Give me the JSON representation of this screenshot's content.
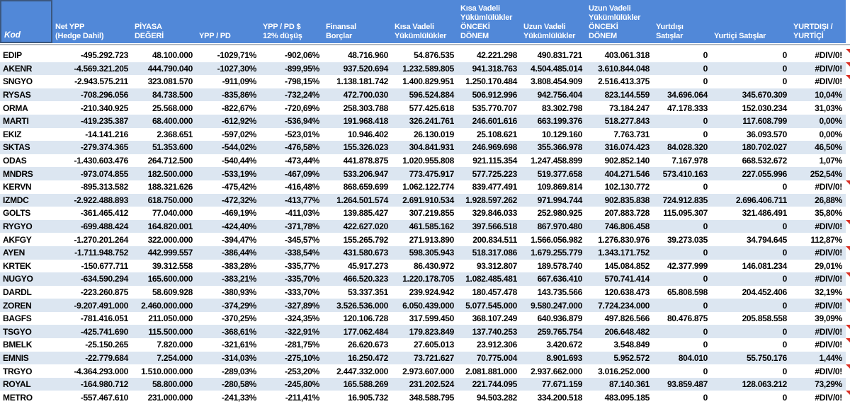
{
  "colors": {
    "header_bg": "#5188D8",
    "stripe": "#DCE6F1",
    "selection_border": "#3B577E",
    "comment_flag": "#D93025",
    "header_text": "#FFFFFF",
    "data_text": "#000000"
  },
  "header": {
    "columns": [
      {
        "id": "kod",
        "label": "Kod"
      },
      {
        "id": "net-ypp",
        "label": "Net YPP\n(Hedge Dahil)"
      },
      {
        "id": "piyasa-degeri",
        "label": "PİYASA\nDEĞERİ"
      },
      {
        "id": "ypp-pd",
        "label": "YPP / PD"
      },
      {
        "id": "ypp-pd-usd",
        "label": "YPP / PD $\n12% düşüş"
      },
      {
        "id": "finansal-borclar",
        "label": "Finansal\nBorçlar"
      },
      {
        "id": "kisa-vadeli",
        "label": "Kısa Vadeli\nYükümlülükler"
      },
      {
        "id": "kisa-vadeli-onceki",
        "label": "Kısa Vadeli\nYükümlülükler\nÖNCEKİ\nDÖNEM"
      },
      {
        "id": "uzun-vadeli",
        "label": "Uzun Vadeli\nYükümlülükler"
      },
      {
        "id": "uzun-vadeli-onceki",
        "label": "Uzun Vadeli\nYükümlülükler\nÖNCEKİ\nDÖNEM"
      },
      {
        "id": "yurtdisi-satislar",
        "label": "Yurtdışı\nSatışlar"
      },
      {
        "id": "yurtici-satislar",
        "label": "Yurtiçi Satışlar"
      },
      {
        "id": "yurtdisi-yurtici",
        "label": "YURTDIŞI /\nYURTİÇİ"
      }
    ]
  },
  "rows": [
    {
      "flagged": true,
      "cells": [
        "EDIP",
        "-495.292.723",
        "48.100.000",
        "-1029,71%",
        "-902,06%",
        "48.716.960",
        "54.876.535",
        "42.221.298",
        "490.831.721",
        "403.061.318",
        "0",
        "0",
        "#DIV/0!"
      ]
    },
    {
      "flagged": true,
      "cells": [
        "AKENR",
        "-4.569.321.205",
        "444.790.040",
        "-1027,30%",
        "-899,95%",
        "937.520.694",
        "1.232.589.805",
        "941.318.763",
        "4.504.485.014",
        "3.610.844.048",
        "0",
        "0",
        "#DIV/0!"
      ]
    },
    {
      "flagged": true,
      "cells": [
        "SNGYO",
        "-2.943.575.211",
        "323.081.570",
        "-911,09%",
        "-798,15%",
        "1.138.181.742",
        "1.400.829.951",
        "1.250.170.484",
        "3.808.454.909",
        "2.516.413.375",
        "0",
        "0",
        "#DIV/0!"
      ]
    },
    {
      "flagged": false,
      "cells": [
        "RYSAS",
        "-708.296.056",
        "84.738.500",
        "-835,86%",
        "-732,24%",
        "472.700.030",
        "596.524.884",
        "506.912.996",
        "942.756.404",
        "823.144.559",
        "34.696.064",
        "345.670.309",
        "10,04%"
      ]
    },
    {
      "flagged": false,
      "cells": [
        "ORMA",
        "-210.340.925",
        "25.568.000",
        "-822,67%",
        "-720,69%",
        "258.303.788",
        "577.425.618",
        "535.770.707",
        "83.302.798",
        "73.184.247",
        "47.178.333",
        "152.030.234",
        "31,03%"
      ]
    },
    {
      "flagged": false,
      "cells": [
        "MARTI",
        "-419.235.387",
        "68.400.000",
        "-612,92%",
        "-536,94%",
        "191.968.418",
        "326.241.761",
        "246.601.616",
        "663.199.376",
        "518.277.843",
        "0",
        "117.608.799",
        "0,00%"
      ]
    },
    {
      "flagged": false,
      "cells": [
        "EKIZ",
        "-14.141.216",
        "2.368.651",
        "-597,02%",
        "-523,01%",
        "10.946.402",
        "26.130.019",
        "25.108.621",
        "10.129.160",
        "7.763.731",
        "0",
        "36.093.570",
        "0,00%"
      ]
    },
    {
      "flagged": false,
      "cells": [
        "SKTAS",
        "-279.374.365",
        "51.353.600",
        "-544,02%",
        "-476,58%",
        "155.326.023",
        "304.841.931",
        "246.969.698",
        "355.366.978",
        "316.074.423",
        "84.028.320",
        "180.702.027",
        "46,50%"
      ]
    },
    {
      "flagged": false,
      "cells": [
        "ODAS",
        "-1.430.603.476",
        "264.712.500",
        "-540,44%",
        "-473,44%",
        "441.878.875",
        "1.020.955.808",
        "921.115.354",
        "1.247.458.899",
        "902.852.140",
        "7.167.978",
        "668.532.672",
        "1,07%"
      ]
    },
    {
      "flagged": false,
      "cells": [
        "MNDRS",
        "-973.074.855",
        "182.500.000",
        "-533,19%",
        "-467,09%",
        "533.206.947",
        "773.475.917",
        "577.725.223",
        "519.377.658",
        "404.271.546",
        "573.410.163",
        "227.055.996",
        "252,54%"
      ]
    },
    {
      "flagged": true,
      "cells": [
        "KERVN",
        "-895.313.582",
        "188.321.626",
        "-475,42%",
        "-416,48%",
        "868.659.699",
        "1.062.122.774",
        "839.477.491",
        "109.869.814",
        "102.130.772",
        "0",
        "0",
        "#DIV/0!"
      ]
    },
    {
      "flagged": false,
      "cells": [
        "IZMDC",
        "-2.922.488.893",
        "618.750.000",
        "-472,32%",
        "-413,77%",
        "1.264.501.574",
        "2.691.910.534",
        "1.928.597.262",
        "971.994.744",
        "902.835.838",
        "724.912.835",
        "2.696.406.711",
        "26,88%"
      ]
    },
    {
      "flagged": false,
      "cells": [
        "GOLTS",
        "-361.465.412",
        "77.040.000",
        "-469,19%",
        "-411,03%",
        "139.885.427",
        "307.219.855",
        "329.846.033",
        "252.980.925",
        "207.883.728",
        "115.095.307",
        "321.486.491",
        "35,80%"
      ]
    },
    {
      "flagged": true,
      "cells": [
        "RYGYO",
        "-699.488.424",
        "164.820.001",
        "-424,40%",
        "-371,78%",
        "422.627.020",
        "461.585.162",
        "397.566.518",
        "867.970.480",
        "746.806.458",
        "0",
        "0",
        "#DIV/0!"
      ]
    },
    {
      "flagged": false,
      "cells": [
        "AKFGY",
        "-1.270.201.264",
        "322.000.000",
        "-394,47%",
        "-345,57%",
        "155.265.792",
        "271.913.890",
        "200.834.511",
        "1.566.056.982",
        "1.276.830.976",
        "39.273.035",
        "34.794.645",
        "112,87%"
      ]
    },
    {
      "flagged": true,
      "cells": [
        "AYEN",
        "-1.711.948.752",
        "442.999.557",
        "-386,44%",
        "-338,54%",
        "431.580.673",
        "598.305.943",
        "518.317.086",
        "1.679.255.779",
        "1.343.171.752",
        "0",
        "0",
        "#DIV/0!"
      ]
    },
    {
      "flagged": false,
      "cells": [
        "KRTEK",
        "-150.677.711",
        "39.312.558",
        "-383,28%",
        "-335,77%",
        "45.917.273",
        "86.430.972",
        "93.312.807",
        "189.578.740",
        "145.084.852",
        "42.377.999",
        "146.081.234",
        "29,01%"
      ]
    },
    {
      "flagged": true,
      "cells": [
        "NUGYO",
        "-634.590.294",
        "165.600.000",
        "-383,21%",
        "-335,70%",
        "466.520.323",
        "1.220.178.705",
        "1.082.485.481",
        "667.636.410",
        "570.741.414",
        "0",
        "0",
        "#DIV/0!"
      ]
    },
    {
      "flagged": false,
      "cells": [
        "DARDL",
        "-223.260.875",
        "58.609.928",
        "-380,93%",
        "-333,70%",
        "53.337.351",
        "239.924.942",
        "180.457.478",
        "143.735.566",
        "120.638.473",
        "65.808.598",
        "204.452.406",
        "32,19%"
      ]
    },
    {
      "flagged": true,
      "cells": [
        "ZOREN",
        "-9.207.491.000",
        "2.460.000.000",
        "-374,29%",
        "-327,89%",
        "3.526.536.000",
        "6.050.439.000",
        "5.077.545.000",
        "9.580.247.000",
        "7.724.234.000",
        "0",
        "0",
        "#DIV/0!"
      ]
    },
    {
      "flagged": false,
      "cells": [
        "BAGFS",
        "-781.416.051",
        "211.050.000",
        "-370,25%",
        "-324,35%",
        "120.106.728",
        "317.599.450",
        "368.107.249",
        "640.936.879",
        "497.826.566",
        "80.476.875",
        "205.858.558",
        "39,09%"
      ]
    },
    {
      "flagged": true,
      "cells": [
        "TSGYO",
        "-425.741.690",
        "115.500.000",
        "-368,61%",
        "-322,91%",
        "177.062.484",
        "179.823.849",
        "137.740.253",
        "259.765.754",
        "206.648.482",
        "0",
        "0",
        "#DIV/0!"
      ]
    },
    {
      "flagged": true,
      "cells": [
        "BMELK",
        "-25.150.265",
        "7.820.000",
        "-321,61%",
        "-281,75%",
        "26.620.673",
        "27.605.013",
        "23.912.306",
        "3.420.672",
        "3.548.849",
        "0",
        "0",
        "#DIV/0!"
      ]
    },
    {
      "flagged": false,
      "cells": [
        "EMNIS",
        "-22.779.684",
        "7.254.000",
        "-314,03%",
        "-275,10%",
        "16.250.472",
        "73.721.627",
        "70.775.004",
        "8.901.693",
        "5.952.572",
        "804.010",
        "55.750.176",
        "1,44%"
      ]
    },
    {
      "flagged": true,
      "cells": [
        "TRGYO",
        "-4.364.293.000",
        "1.510.000.000",
        "-289,03%",
        "-253,20%",
        "2.447.332.000",
        "2.973.607.000",
        "2.081.881.000",
        "2.937.662.000",
        "3.016.252.000",
        "0",
        "0",
        "#DIV/0!"
      ]
    },
    {
      "flagged": false,
      "cells": [
        "ROYAL",
        "-164.980.712",
        "58.800.000",
        "-280,58%",
        "-245,80%",
        "165.588.269",
        "231.202.524",
        "221.744.095",
        "77.671.159",
        "87.140.361",
        "93.859.487",
        "128.063.212",
        "73,29%"
      ]
    },
    {
      "flagged": true,
      "cells": [
        "METRO",
        "-557.467.610",
        "231.000.000",
        "-241,33%",
        "-211,41%",
        "16.905.732",
        "348.588.795",
        "94.503.282",
        "334.200.518",
        "483.095.185",
        "0",
        "0",
        "#DIV/0!"
      ]
    }
  ]
}
